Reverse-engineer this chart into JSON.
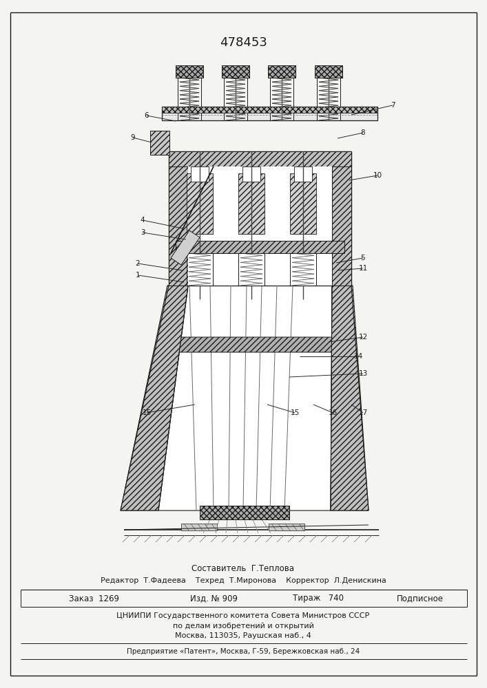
{
  "title": "478453",
  "bg_color": "#f4f4f0",
  "lc": "#1a1a1a",
  "footer": {
    "composer": "Составитель  Г.Теплова",
    "editor_line": "Редактор  Т.Фадеева    Техред  Т.Миронова    Корректор  Л.Денискина",
    "order_text": "Заказ  1269",
    "izd_text": "Изд. № 909",
    "tirazh_text": "Тираж   740",
    "podp_text": "Подписное",
    "org1": "ЦНИИПИ Государственного комитета Совета Министров СССР",
    "org2": "по делам изобретений и открытий",
    "org3": "Москва, 113035, Раушская наб., 4",
    "enterprise": "Предприятие «Патент», Москва, Г-59, Бережковская наб., 24"
  },
  "annotations": [
    [
      "7",
      570,
      153,
      510,
      167
    ],
    [
      "6",
      213,
      168,
      255,
      176
    ],
    [
      "9",
      193,
      200,
      220,
      207
    ],
    [
      "8",
      527,
      193,
      490,
      201
    ],
    [
      "10",
      548,
      255,
      507,
      262
    ],
    [
      "4",
      207,
      320,
      265,
      332
    ],
    [
      "3",
      207,
      338,
      270,
      348
    ],
    [
      "2",
      200,
      383,
      265,
      393
    ],
    [
      "1",
      200,
      400,
      267,
      410
    ],
    [
      "5",
      527,
      375,
      488,
      382
    ],
    [
      "11",
      527,
      390,
      490,
      393
    ],
    [
      "12",
      527,
      490,
      478,
      497
    ],
    [
      "14",
      520,
      518,
      435,
      518
    ],
    [
      "13",
      527,
      543,
      420,
      548
    ],
    [
      "15",
      213,
      600,
      283,
      588
    ],
    [
      "15",
      428,
      600,
      388,
      588
    ],
    [
      "16",
      483,
      600,
      455,
      588
    ],
    [
      "17",
      527,
      600,
      510,
      588
    ]
  ]
}
